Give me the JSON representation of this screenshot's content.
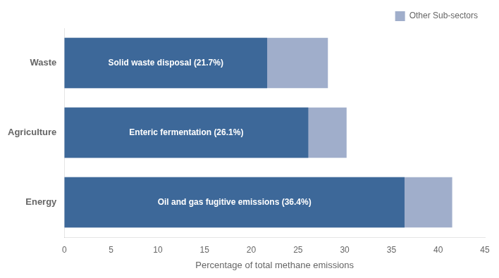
{
  "chart_data": {
    "type": "bar",
    "orientation": "horizontal",
    "categories": [
      "Waste",
      "Agriculture",
      "Energy"
    ],
    "series": [
      {
        "name": "Other Sub-sectors",
        "color": "#A0AECB",
        "values": [
          28.2,
          30.2,
          41.5
        ]
      },
      {
        "color": "#3D6899",
        "values": [
          21.7,
          26.1,
          36.4
        ],
        "data_labels": true,
        "value_labels": [
          "Solid waste disposal (21.7%)",
          "Enteric fermentation (26.1%)",
          "Oil and gas fugitive emissions (36.4%)"
        ]
      }
    ],
    "xlabel": "Percentage of total methane emissions",
    "xlim": [
      0,
      45
    ],
    "xticks": [
      0,
      5,
      10,
      15,
      20,
      25,
      30,
      35,
      40,
      45
    ],
    "grid": false,
    "legend": "upper right"
  }
}
